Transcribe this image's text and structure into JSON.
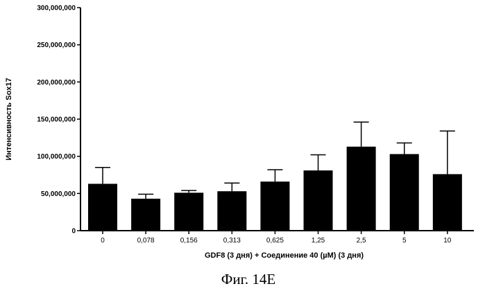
{
  "chart_data": {
    "type": "bar",
    "title": "",
    "xlabel": "GDF8 (3 дня) + Соединение 40 (µM) (3 дня)",
    "ylabel": "Интенсивность Sox17",
    "ylim": [
      0,
      300000000
    ],
    "yticks": [
      0,
      50000000,
      100000000,
      150000000,
      200000000,
      250000000,
      300000000
    ],
    "ytick_labels": [
      "0",
      "50,000,000",
      "100,000,000",
      "150,000,000",
      "200,000,000",
      "250,000,000",
      "300,000,000"
    ],
    "categories": [
      "0",
      "0,078",
      "0,156",
      "0,313",
      "0,625",
      "1,25",
      "2,5",
      "5",
      "10"
    ],
    "values": [
      63000000,
      43000000,
      51000000,
      53000000,
      66000000,
      81000000,
      113000000,
      103000000,
      76000000
    ],
    "error_upper": [
      85000000,
      49000000,
      54000000,
      64000000,
      82000000,
      102000000,
      146000000,
      118000000,
      134000000
    ],
    "grid": false,
    "bar_color": "#000000"
  },
  "caption": "Фиг. 14E"
}
